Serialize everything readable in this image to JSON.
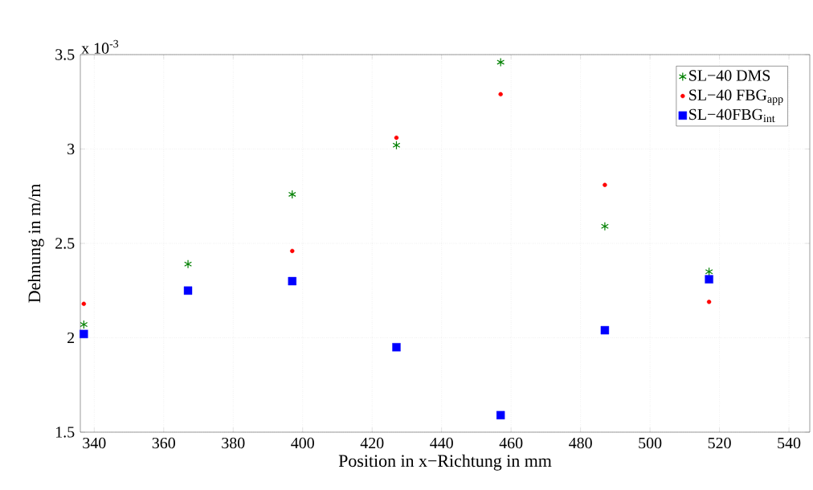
{
  "chart_data": {
    "type": "scatter",
    "xlabel": "Position in x−Richtung in mm",
    "ylabel": "Dehnung in m/m",
    "annotations": [
      "x 10$^{-3}$"
    ],
    "x": [
      337,
      367,
      397,
      427,
      457,
      487,
      517
    ],
    "series": [
      {
        "name": "SL−40 DMS",
        "color": "#008000",
        "marker": "cross",
        "values": [
          2.07,
          2.39,
          2.76,
          3.02,
          3.46,
          2.59,
          2.35
        ]
      },
      {
        "name": "SL−40 FBG$_{app}$",
        "color": "#ff0000",
        "marker": "circle",
        "values": [
          2.18,
          null,
          2.46,
          3.06,
          3.29,
          2.81,
          2.19
        ]
      },
      {
        "name": "SL−40FBG$_{int}$",
        "color": "#0000ff",
        "marker": "square",
        "values": [
          2.02,
          2.25,
          2.3,
          1.95,
          1.59,
          2.04,
          2.31
        ]
      }
    ],
    "xlim": [
      336,
      546
    ],
    "ylim": [
      1.5,
      3.5
    ],
    "xticks": [
      340,
      360,
      380,
      400,
      420,
      440,
      460,
      480,
      500,
      520,
      540
    ],
    "yticks": [
      1.5,
      2,
      2.5,
      3,
      3.5
    ],
    "grid": true,
    "legend": "top right"
  }
}
